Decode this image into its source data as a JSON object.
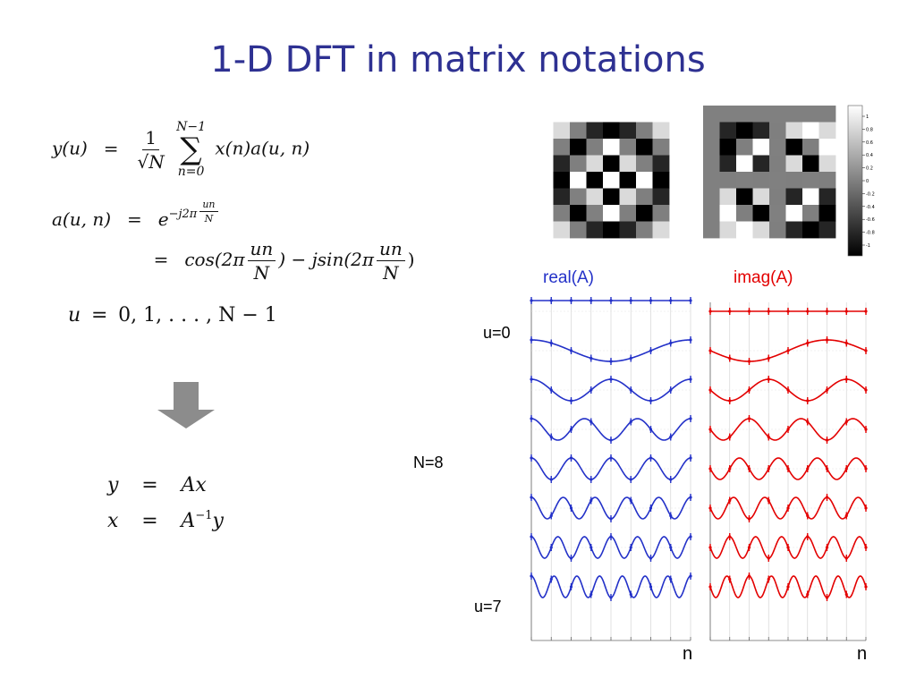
{
  "slide_title": "1-D DFT in matrix notations",
  "formulas": {
    "eq1": {
      "lhs": "y(u)",
      "eq": "=",
      "frac_num": "1",
      "frac_den": "√N",
      "sum_top": "N−1",
      "sum_bot": "n=0",
      "sum_sym": "∑",
      "rhs": "x(n)a(u, n)"
    },
    "eq2": {
      "lhs": "a(u, n)",
      "eq": "=",
      "base": "e",
      "exp": "−j2π",
      "exp_num": "un",
      "exp_den": "N"
    },
    "eq3": {
      "eq": "=",
      "p1": "cos(2π",
      "num": "un",
      "den": "N",
      "p2": ") − jsin(2π",
      "p3": ")"
    },
    "eq4": {
      "lhs": "u",
      "eq": "=",
      "rhs": "0, 1, . . . , N − 1"
    },
    "eq5": {
      "lhs": "y",
      "eq": "=",
      "rhs": "Ax"
    },
    "eq6": {
      "lhs": "x",
      "eq": "=",
      "rhs_a": "A",
      "rhs_sup": "−1",
      "rhs_b": "y"
    }
  },
  "arrow_color": "#8C8C8C",
  "labels": {
    "real": "real(A)",
    "imag": "imag(A)",
    "n_size": "N=8",
    "u_first": "u=0",
    "u_last": "u=7",
    "n_axis_left": "n",
    "n_axis_right": "n"
  },
  "colorbar": {
    "ticks": [
      "1",
      "0.8",
      "0.6",
      "0.4",
      "0.2",
      "0",
      "-0.2",
      "-0.4",
      "-0.6",
      "-0.8",
      "-1"
    ],
    "range": [
      -1,
      1
    ]
  },
  "colors": {
    "title": "#2E3192",
    "real": "#2331C8",
    "imag": "#E30000"
  },
  "chart_data": {
    "type": "line",
    "N": 8,
    "rows": [
      0,
      1,
      2,
      3,
      4,
      5,
      6,
      7
    ],
    "series": [
      {
        "name": "real(A)",
        "function": "cos(2*pi*u*n/N)"
      },
      {
        "name": "imag(A)",
        "function": "-sin(2*pi*u*n/N)"
      }
    ],
    "xlabel": "n",
    "grid": true
  }
}
